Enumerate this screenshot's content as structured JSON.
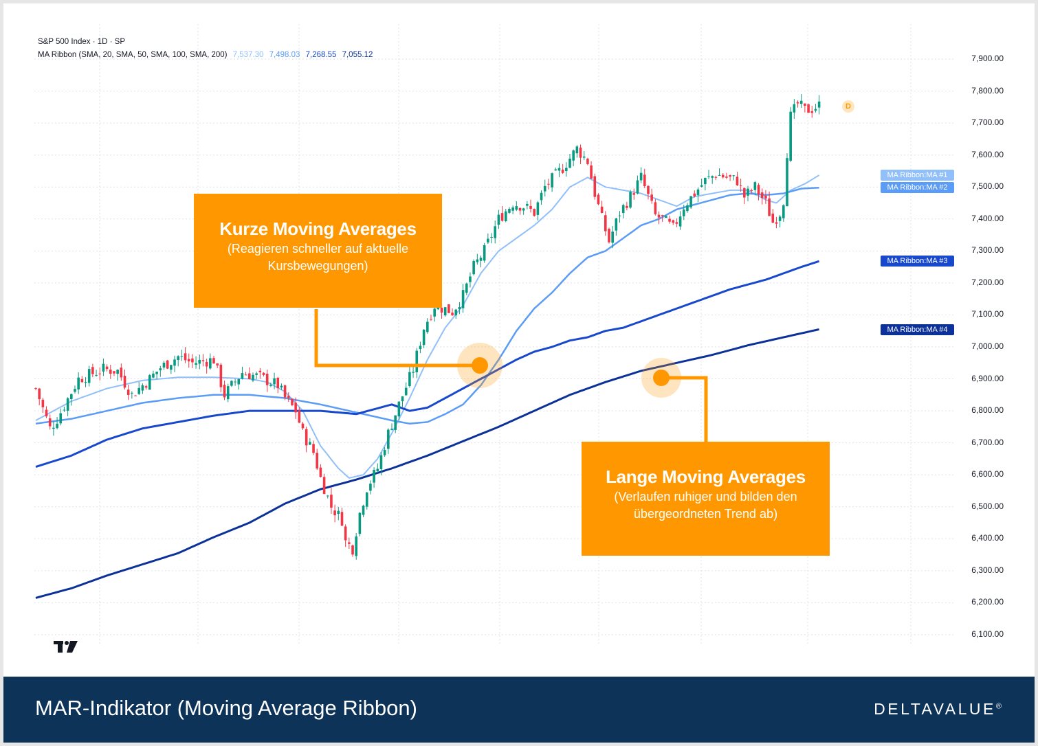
{
  "header": {
    "symbol_line": "S&P 500 Index · 1D · SP",
    "indicator_line": "MA Ribbon (SMA, 20, SMA, 50, SMA, 100, SMA, 200)",
    "ma_values": [
      "7,537.30",
      "7,498.03",
      "7,268.55",
      "7,055.12"
    ]
  },
  "colors": {
    "up": "#089981",
    "down": "#f23645",
    "ma1": "#90bff9",
    "ma2": "#5b9cf6",
    "ma3": "#1848cc",
    "ma4": "#0c3299",
    "callout": "#ff9800",
    "footer": "#0d3358"
  },
  "callouts": {
    "short": {
      "title": "Kurze Moving Averages",
      "subtitle": "(Reagieren schneller auf aktuelle Kursbewegungen)"
    },
    "long": {
      "title": "Lange Moving Averages",
      "subtitle": "(Verlaufen ruhiger und bilden den übergeordneten Trend ab)"
    }
  },
  "badge": "D",
  "footer": {
    "title": "MAR-Indikator (Moving Average Ribbon)",
    "brand": "DELTAVALUE",
    "brand_mark": "®"
  },
  "icons": {
    "tradingview_logo": "tradingview-logo-icon"
  },
  "chart_data": {
    "type": "candlestick",
    "ylim": [
      6050,
      7960
    ],
    "y_ticks": [
      "7,900.00",
      "7,800.00",
      "7,700.00",
      "7,600.00",
      "7,500.00",
      "7,400.00",
      "7,300.00",
      "7,200.00",
      "7,100.00",
      "7,000.00",
      "6,900.00",
      "6,800.00",
      "6,700.00",
      "6,600.00",
      "6,500.00",
      "6,400.00",
      "6,300.00",
      "6,200.00",
      "6,100.00"
    ],
    "y_tick_values": [
      7900,
      7800,
      7700,
      7600,
      7500,
      7400,
      7300,
      7200,
      7100,
      7000,
      6900,
      6800,
      6700,
      6600,
      6500,
      6400,
      6300,
      6200,
      6100
    ],
    "bars": 164,
    "price_anchors": [
      [
        0,
        6870
      ],
      [
        4,
        6745
      ],
      [
        6,
        6775
      ],
      [
        12,
        6900
      ],
      [
        19,
        6930
      ],
      [
        23,
        6925
      ],
      [
        27,
        6850
      ],
      [
        32,
        6900
      ],
      [
        35,
        6935
      ],
      [
        40,
        6970
      ],
      [
        44,
        6950
      ],
      [
        50,
        6960
      ],
      [
        53,
        6850
      ],
      [
        58,
        6920
      ],
      [
        63,
        6905
      ],
      [
        68,
        6880
      ],
      [
        70,
        6840
      ],
      [
        73,
        6800
      ],
      [
        75,
        6730
      ],
      [
        78,
        6670
      ],
      [
        80,
        6590
      ],
      [
        83,
        6500
      ],
      [
        86,
        6460
      ],
      [
        87,
        6390
      ],
      [
        89,
        6370
      ],
      [
        91,
        6480
      ],
      [
        93,
        6560
      ],
      [
        96,
        6620
      ],
      [
        99,
        6730
      ],
      [
        102,
        6820
      ],
      [
        106,
        6930
      ],
      [
        109,
        7060
      ],
      [
        112,
        7130
      ],
      [
        117,
        7110
      ],
      [
        120,
        7160
      ],
      [
        123,
        7250
      ],
      [
        126,
        7300
      ],
      [
        130,
        7400
      ],
      [
        134,
        7450
      ],
      [
        137,
        7440
      ],
      [
        140,
        7420
      ],
      [
        143,
        7500
      ],
      [
        148,
        7560
      ],
      [
        152,
        7620
      ],
      [
        155,
        7580
      ],
      [
        157,
        7480
      ],
      [
        159,
        7400
      ],
      [
        161,
        7330
      ],
      [
        163,
        7390
      ],
      [
        164,
        7420
      ],
      [
        167,
        7470
      ],
      [
        170,
        7530
      ],
      [
        174,
        7410
      ],
      [
        176,
        7400
      ],
      [
        179,
        7370
      ],
      [
        182,
        7440
      ],
      [
        185,
        7480
      ],
      [
        188,
        7520
      ],
      [
        191,
        7540
      ],
      [
        194,
        7530
      ],
      [
        197,
        7520
      ],
      [
        199,
        7470
      ],
      [
        202,
        7500
      ],
      [
        205,
        7450
      ],
      [
        207,
        7390
      ],
      [
        209,
        7420
      ],
      [
        210,
        7460
      ],
      [
        211,
        7610
      ],
      [
        212,
        7720
      ],
      [
        214,
        7760
      ],
      [
        216,
        7740
      ],
      [
        218,
        7745
      ],
      [
        220,
        7755
      ]
    ],
    "ma_series": [
      {
        "name": "MA Ribbon:MA #1",
        "label": "MA Ribbon:MA #1",
        "value": 7537.3,
        "anchors": [
          [
            0,
            6770
          ],
          [
            10,
            6830
          ],
          [
            20,
            6870
          ],
          [
            30,
            6895
          ],
          [
            40,
            6905
          ],
          [
            50,
            6905
          ],
          [
            60,
            6900
          ],
          [
            65,
            6890
          ],
          [
            70,
            6860
          ],
          [
            75,
            6800
          ],
          [
            80,
            6690
          ],
          [
            85,
            6620
          ],
          [
            88,
            6590
          ],
          [
            92,
            6600
          ],
          [
            96,
            6650
          ],
          [
            100,
            6730
          ],
          [
            105,
            6840
          ],
          [
            110,
            6960
          ],
          [
            115,
            7060
          ],
          [
            120,
            7130
          ],
          [
            125,
            7230
          ],
          [
            130,
            7300
          ],
          [
            135,
            7340
          ],
          [
            140,
            7380
          ],
          [
            145,
            7430
          ],
          [
            150,
            7500
          ],
          [
            155,
            7530
          ],
          [
            160,
            7500
          ],
          [
            165,
            7490
          ],
          [
            170,
            7480
          ],
          [
            175,
            7460
          ],
          [
            180,
            7440
          ],
          [
            185,
            7470
          ],
          [
            190,
            7480
          ],
          [
            195,
            7490
          ],
          [
            200,
            7490
          ],
          [
            205,
            7460
          ],
          [
            208,
            7450
          ],
          [
            212,
            7490
          ],
          [
            216,
            7510
          ],
          [
            220,
            7537
          ]
        ]
      },
      {
        "name": "MA Ribbon:MA #2",
        "label": "MA Ribbon:MA #2",
        "value": 7498.03,
        "anchors": [
          [
            0,
            6760
          ],
          [
            10,
            6775
          ],
          [
            20,
            6800
          ],
          [
            30,
            6825
          ],
          [
            40,
            6840
          ],
          [
            50,
            6850
          ],
          [
            60,
            6850
          ],
          [
            70,
            6840
          ],
          [
            80,
            6820
          ],
          [
            90,
            6795
          ],
          [
            100,
            6770
          ],
          [
            105,
            6760
          ],
          [
            110,
            6765
          ],
          [
            115,
            6790
          ],
          [
            120,
            6820
          ],
          [
            125,
            6880
          ],
          [
            130,
            6960
          ],
          [
            135,
            7050
          ],
          [
            140,
            7120
          ],
          [
            145,
            7170
          ],
          [
            150,
            7230
          ],
          [
            155,
            7280
          ],
          [
            160,
            7300
          ],
          [
            165,
            7340
          ],
          [
            170,
            7380
          ],
          [
            175,
            7400
          ],
          [
            180,
            7430
          ],
          [
            185,
            7445
          ],
          [
            190,
            7460
          ],
          [
            195,
            7475
          ],
          [
            200,
            7480
          ],
          [
            205,
            7475
          ],
          [
            210,
            7480
          ],
          [
            215,
            7495
          ],
          [
            220,
            7498
          ]
        ]
      },
      {
        "name": "MA Ribbon:MA #3",
        "label": "MA Ribbon:MA #3",
        "value": 7268.55,
        "anchors": [
          [
            0,
            6625
          ],
          [
            10,
            6660
          ],
          [
            20,
            6710
          ],
          [
            30,
            6745
          ],
          [
            40,
            6765
          ],
          [
            50,
            6785
          ],
          [
            60,
            6800
          ],
          [
            70,
            6800
          ],
          [
            80,
            6800
          ],
          [
            90,
            6790
          ],
          [
            100,
            6820
          ],
          [
            105,
            6800
          ],
          [
            110,
            6810
          ],
          [
            115,
            6840
          ],
          [
            120,
            6870
          ],
          [
            125,
            6900
          ],
          [
            130,
            6930
          ],
          [
            135,
            6960
          ],
          [
            140,
            6985
          ],
          [
            145,
            7000
          ],
          [
            150,
            7020
          ],
          [
            155,
            7030
          ],
          [
            160,
            7050
          ],
          [
            165,
            7060
          ],
          [
            170,
            7080
          ],
          [
            175,
            7100
          ],
          [
            180,
            7120
          ],
          [
            185,
            7140
          ],
          [
            190,
            7160
          ],
          [
            195,
            7180
          ],
          [
            200,
            7195
          ],
          [
            205,
            7210
          ],
          [
            210,
            7230
          ],
          [
            215,
            7250
          ],
          [
            220,
            7268
          ]
        ]
      },
      {
        "name": "MA Ribbon:MA #4",
        "label": "MA Ribbon:MA #4",
        "value": 7055.12,
        "anchors": [
          [
            0,
            6215
          ],
          [
            10,
            6245
          ],
          [
            20,
            6285
          ],
          [
            30,
            6320
          ],
          [
            40,
            6355
          ],
          [
            50,
            6405
          ],
          [
            60,
            6450
          ],
          [
            70,
            6510
          ],
          [
            80,
            6555
          ],
          [
            90,
            6585
          ],
          [
            100,
            6620
          ],
          [
            110,
            6660
          ],
          [
            120,
            6705
          ],
          [
            130,
            6750
          ],
          [
            140,
            6800
          ],
          [
            150,
            6850
          ],
          [
            160,
            6890
          ],
          [
            170,
            6925
          ],
          [
            180,
            6950
          ],
          [
            190,
            6975
          ],
          [
            200,
            7005
          ],
          [
            210,
            7030
          ],
          [
            220,
            7055
          ]
        ]
      }
    ]
  }
}
